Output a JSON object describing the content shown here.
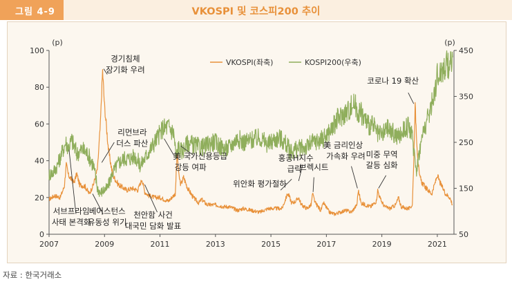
{
  "header": {
    "figure_label": "그림 4-9",
    "title": "VKOSPI 및 코스피200 추이"
  },
  "source": "자료 : 한국거래소",
  "colors": {
    "badge_bg": "#f0a259",
    "band_bg": "#fbefe0",
    "title_color": "#e8913a",
    "vkospi": "#e8913a",
    "kospi200": "#8fae5c",
    "frame_bg": "#fcf7ef"
  },
  "chart_data": {
    "type": "line",
    "left_unit": "(p)",
    "right_unit": "(p)",
    "left_ylim": [
      0,
      100
    ],
    "left_ticks": [
      "0",
      "20",
      "40",
      "60",
      "80",
      "100"
    ],
    "right_ylim": [
      50,
      450
    ],
    "right_ticks": [
      "50",
      "150",
      "250",
      "350",
      "450"
    ],
    "xlim": [
      2007,
      2021.6
    ],
    "x_ticks": [
      "2007",
      "2009",
      "2011",
      "2013",
      "2015",
      "2017",
      "2019",
      "2021"
    ],
    "legend": [
      "VKOSPI(좌축)",
      "KOSPI200(우축)"
    ],
    "series": [
      {
        "name": "VKOSPI(좌축)",
        "axis": "left",
        "x": [
          2007.0,
          2007.2,
          2007.4,
          2007.55,
          2007.62,
          2007.7,
          2007.9,
          2008.0,
          2008.1,
          2008.3,
          2008.45,
          2008.6,
          2008.75,
          2008.85,
          2008.93,
          2009.0,
          2009.15,
          2009.3,
          2009.5,
          2009.8,
          2010.0,
          2010.2,
          2010.35,
          2010.45,
          2010.6,
          2010.8,
          2011.0,
          2011.3,
          2011.55,
          2011.62,
          2011.68,
          2011.75,
          2011.85,
          2012.0,
          2012.2,
          2012.4,
          2012.5,
          2012.7,
          2013.0,
          2013.3,
          2013.5,
          2013.8,
          2014.0,
          2014.3,
          2014.6,
          2014.9,
          2015.1,
          2015.4,
          2015.6,
          2015.65,
          2015.75,
          2015.9,
          2016.0,
          2016.1,
          2016.3,
          2016.45,
          2016.5,
          2016.6,
          2016.8,
          2016.9,
          2017.1,
          2017.3,
          2017.5,
          2017.7,
          2017.9,
          2018.1,
          2018.15,
          2018.25,
          2018.4,
          2018.6,
          2018.8,
          2018.85,
          2018.95,
          2019.1,
          2019.3,
          2019.5,
          2019.6,
          2019.7,
          2019.9,
          2020.0,
          2020.1,
          2020.15,
          2020.2,
          2020.28,
          2020.35,
          2020.45,
          2020.6,
          2020.8,
          2021.0,
          2021.1,
          2021.2,
          2021.3,
          2021.45,
          2021.55
        ],
        "y": [
          19,
          21,
          20,
          26,
          38,
          32,
          28,
          33,
          27,
          26,
          22,
          27,
          36,
          60,
          89,
          70,
          45,
          32,
          27,
          24,
          25,
          24,
          30,
          23,
          21,
          20,
          20,
          18,
          22,
          45,
          32,
          27,
          31,
          25,
          20,
          17,
          19,
          16,
          16,
          15,
          15,
          13,
          14,
          13,
          12,
          14,
          14,
          14,
          22,
          21,
          17,
          18,
          20,
          16,
          14,
          16,
          22,
          17,
          13,
          17,
          12,
          11,
          12,
          13,
          12,
          16,
          24,
          17,
          16,
          15,
          18,
          24,
          19,
          15,
          14,
          16,
          20,
          15,
          14,
          14,
          16,
          40,
          70,
          45,
          32,
          28,
          25,
          22,
          32,
          28,
          25,
          22,
          20,
          16
        ]
      },
      {
        "name": "KOSPI200(우축)",
        "axis": "right",
        "x": [
          2007.0,
          2007.15,
          2007.3,
          2007.45,
          2007.6,
          2007.7,
          2007.82,
          2008.0,
          2008.2,
          2008.4,
          2008.6,
          2008.75,
          2008.85,
          2008.95,
          2009.1,
          2009.3,
          2009.5,
          2009.7,
          2009.9,
          2010.1,
          2010.3,
          2010.5,
          2010.7,
          2010.9,
          2011.1,
          2011.3,
          2011.5,
          2011.58,
          2011.65,
          2011.8,
          2012.0,
          2012.2,
          2012.4,
          2012.6,
          2012.8,
          2013.0,
          2013.2,
          2013.4,
          2013.6,
          2013.8,
          2014.0,
          2014.3,
          2014.6,
          2014.9,
          2015.1,
          2015.3,
          2015.5,
          2015.7,
          2015.9,
          2016.1,
          2016.3,
          2016.5,
          2016.8,
          2017.0,
          2017.2,
          2017.4,
          2017.6,
          2017.8,
          2018.0,
          2018.1,
          2018.3,
          2018.5,
          2018.7,
          2018.85,
          2019.0,
          2019.2,
          2019.4,
          2019.6,
          2019.8,
          2020.0,
          2020.15,
          2020.25,
          2020.35,
          2020.5,
          2020.7,
          2020.9,
          2021.0,
          2021.2,
          2021.4,
          2021.55
        ],
        "y": [
          180,
          185,
          200,
          225,
          250,
          240,
          255,
          225,
          235,
          225,
          200,
          150,
          140,
          145,
          150,
          185,
          205,
          215,
          215,
          220,
          200,
          220,
          240,
          260,
          280,
          285,
          270,
          215,
          240,
          230,
          250,
          245,
          240,
          240,
          250,
          250,
          240,
          235,
          245,
          260,
          250,
          255,
          260,
          245,
          255,
          260,
          250,
          230,
          235,
          238,
          240,
          250,
          255,
          265,
          280,
          300,
          310,
          320,
          335,
          320,
          310,
          290,
          285,
          265,
          265,
          280,
          270,
          260,
          280,
          285,
          240,
          190,
          230,
          275,
          310,
          360,
          395,
          410,
          420,
          435
        ]
      }
    ],
    "annotations": [
      {
        "text": "경기침체",
        "x": 2009.75,
        "y": 94
      },
      {
        "text": "장기화 우려",
        "x": 2009.75,
        "y": 88
      },
      {
        "text": "리먼브라",
        "x": 2010.0,
        "y": 54
      },
      {
        "text": "더스 파산",
        "x": 2010.0,
        "y": 48
      },
      {
        "text": "美 국가신용등급",
        "x": 2012.45,
        "y": 41
      },
      {
        "text": "강등 여파",
        "x": 2012.1,
        "y": 35
      },
      {
        "text": "서브프라임",
        "x": 2007.8,
        "y": 11
      },
      {
        "text": "사태 본격화",
        "x": 2007.8,
        "y": 5
      },
      {
        "text": "베어스턴스",
        "x": 2009.1,
        "y": 11
      },
      {
        "text": "유동성 위기",
        "x": 2009.1,
        "y": 5
      },
      {
        "text": "천안함 사건",
        "x": 2010.75,
        "y": 9
      },
      {
        "text": "대국민 담화 발표",
        "x": 2010.75,
        "y": 3
      },
      {
        "text": "위안화 평가절하",
        "x": 2014.6,
        "y": 26
      },
      {
        "text": "홍콩H지수",
        "x": 2015.9,
        "y": 40
      },
      {
        "text": "급락",
        "x": 2015.85,
        "y": 34
      },
      {
        "text": "브렉시트",
        "x": 2016.55,
        "y": 35
      },
      {
        "text": "美 금리인상",
        "x": 2017.6,
        "y": 47
      },
      {
        "text": "가속화 우려",
        "x": 2017.7,
        "y": 41
      },
      {
        "text": "미중 무역",
        "x": 2019.0,
        "y": 42
      },
      {
        "text": "갈등 심화",
        "x": 2019.0,
        "y": 36
      },
      {
        "text": "코로나 19 확산",
        "x": 2019.4,
        "y": 82
      }
    ],
    "arrows": [
      {
        "from": [
          2007.97,
          11
        ],
        "to": [
          2007.72,
          46
        ]
      },
      {
        "from": [
          2008.95,
          11
        ],
        "to": [
          2008.57,
          22
        ]
      },
      {
        "from": [
          2010.9,
          12
        ],
        "to": [
          2010.45,
          27
        ]
      },
      {
        "from": [
          2011.5,
          43
        ],
        "to": [
          2011.15,
          52
        ]
      },
      {
        "from": [
          2009.35,
          50
        ],
        "to": [
          2008.9,
          39
        ]
      },
      {
        "from": [
          2012.2,
          43
        ],
        "to": [
          2011.75,
          48
        ]
      },
      {
        "from": [
          2015.75,
          30
        ],
        "to": [
          2015.35,
          24
        ]
      },
      {
        "from": [
          2016.15,
          38
        ],
        "to": [
          2016.0,
          29
        ]
      },
      {
        "from": [
          2016.55,
          31
        ],
        "to": [
          2016.52,
          23
        ]
      },
      {
        "from": [
          2017.9,
          37
        ],
        "to": [
          2018.12,
          25
        ]
      },
      {
        "from": [
          2019.15,
          32
        ],
        "to": [
          2018.88,
          25
        ]
      },
      {
        "from": [
          2019.95,
          77
        ],
        "to": [
          2020.15,
          71
        ]
      },
      {
        "from": [
          2009.1,
          87
        ],
        "to": [
          2008.97,
          90
        ]
      }
    ]
  }
}
